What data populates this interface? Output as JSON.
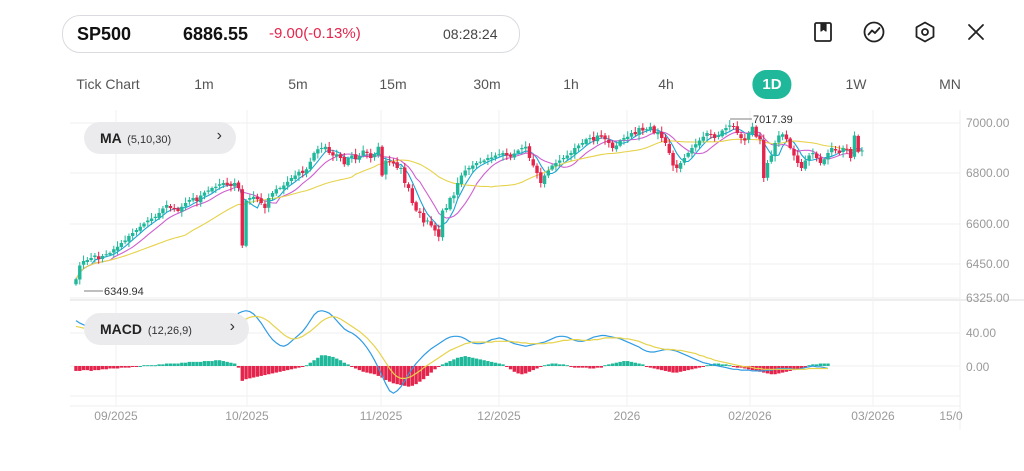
{
  "quote": {
    "symbol": "SP500",
    "price": "6886.55",
    "change": "-9.00(-0.13%)",
    "time": "08:28:24"
  },
  "toolbar": [
    {
      "name": "bookmark-icon"
    },
    {
      "name": "trend-icon"
    },
    {
      "name": "settings-hexagon-icon"
    },
    {
      "name": "close-icon"
    }
  ],
  "timeframes": [
    "Tick Chart",
    "1m",
    "5m",
    "15m",
    "30m",
    "1h",
    "4h",
    "1D",
    "1W",
    "MN"
  ],
  "active_timeframe": "1D",
  "indicators": {
    "ma": {
      "name": "MA",
      "params": "(5,10,30)",
      "chevron": "›"
    },
    "macd": {
      "name": "MACD",
      "params": "(12,26,9)",
      "chevron": "›"
    }
  },
  "colors": {
    "up": "#1fb89a",
    "down": "#e4244b",
    "ma5": "#1aa3d6",
    "ma10": "#cf5fcf",
    "ma30": "#e6d24a",
    "macd_dif": "#2f9be3",
    "macd_dea": "#e6d24a",
    "accent": "#1fb89a"
  },
  "chart_data": {
    "type": "candlestick",
    "price_axis": {
      "ticks": [
        "7000.00",
        "6800.00",
        "6600.00",
        "6450.00",
        "6325.00"
      ],
      "values": [
        7000,
        6800,
        6600,
        6450,
        6325
      ]
    },
    "macd_axis": {
      "ticks": [
        "40.00",
        "0.00"
      ],
      "values": [
        40,
        0
      ]
    },
    "date_axis": {
      "ticks": [
        "09/2025",
        "10/2025",
        "11/2025",
        "12/2025",
        "2026",
        "02/2026",
        "03/2026",
        "15/0"
      ]
    },
    "high_label": "7017.39",
    "low_label": "6349.94",
    "closes": [
      6375,
      6430,
      6448,
      6452,
      6460,
      6470,
      6455,
      6468,
      6475,
      6480,
      6495,
      6505,
      6520,
      6530,
      6548,
      6560,
      6572,
      6585,
      6598,
      6610,
      6618,
      6625,
      6640,
      6658,
      6672,
      6660,
      6655,
      6648,
      6665,
      6680,
      6692,
      6700,
      6688,
      6710,
      6722,
      6730,
      6740,
      6745,
      6755,
      6760,
      6752,
      6748,
      6760,
      6740,
      6510,
      6690,
      6700,
      6705,
      6695,
      6680,
      6660,
      6700,
      6720,
      6735,
      6740,
      6750,
      6765,
      6780,
      6790,
      6805,
      6800,
      6815,
      6845,
      6880,
      6895,
      6900,
      6905,
      6880,
      6870,
      6875,
      6860,
      6835,
      6860,
      6870,
      6855,
      6868,
      6890,
      6880,
      6860,
      6875,
      6905,
      6790,
      6850,
      6845,
      6838,
      6820,
      6820,
      6760,
      6740,
      6680,
      6650,
      6640,
      6602,
      6610,
      6590,
      6570,
      6545,
      6650,
      6660,
      6700,
      6710,
      6760,
      6790,
      6810,
      6820,
      6830,
      6840,
      6845,
      6850,
      6860,
      6862,
      6870,
      6875,
      6880,
      6870,
      6865,
      6878,
      6890,
      6900,
      6905,
      6860,
      6830,
      6800,
      6760,
      6790,
      6810,
      6830,
      6840,
      6850,
      6860,
      6870,
      6880,
      6900,
      6910,
      6920,
      6935,
      6940,
      6930,
      6950,
      6945,
      6935,
      6920,
      6900,
      6910,
      6930,
      6940,
      6945,
      6960,
      6955,
      6980,
      6970,
      6975,
      6985,
      6960,
      6965,
      6940,
      6920,
      6880,
      6830,
      6820,
      6840,
      6860,
      6880,
      6900,
      6915,
      6930,
      6945,
      6960,
      6955,
      6940,
      6950,
      6970,
      6980,
      6990,
      6985,
      6960,
      6940,
      6930,
      6960,
      6985,
      6945,
      6935,
      6780,
      6840,
      6870,
      6920,
      6950,
      6955,
      6935,
      6900,
      6870,
      6840,
      6820,
      6850,
      6870,
      6880,
      6860,
      6840,
      6855,
      6880,
      6900,
      6890,
      6880,
      6900,
      6895,
      6860,
      6950,
      6885,
      6890
    ],
    "macd_hist": [
      -6,
      -6,
      -5,
      -5,
      -6,
      -5,
      -5,
      -4,
      -4,
      -3,
      -3,
      -3,
      -2,
      -2,
      -2,
      -1,
      -1,
      0,
      1,
      1,
      1,
      1,
      2,
      2,
      3,
      3,
      3,
      3,
      4,
      4,
      5,
      5,
      5,
      5,
      6,
      6,
      6,
      7,
      7,
      6,
      5,
      4,
      3,
      -2,
      -18,
      -16,
      -15,
      -14,
      -13,
      -12,
      -11,
      -10,
      -9,
      -8,
      -7,
      -6,
      -5,
      -4,
      -3,
      -2,
      -1,
      1,
      4,
      7,
      10,
      13,
      13,
      12,
      11,
      9,
      7,
      4,
      2,
      -1,
      -3,
      -5,
      -7,
      -8,
      -9,
      -10,
      -12,
      -14,
      -17,
      -19,
      -21,
      -22,
      -23,
      -24,
      -25,
      -24,
      -22,
      -19,
      -16,
      -12,
      -8,
      -4,
      -1,
      2,
      4,
      6,
      8,
      10,
      11,
      12,
      11,
      10,
      9,
      8,
      7,
      6,
      5,
      4,
      3,
      2,
      -1,
      -4,
      -7,
      -9,
      -10,
      -9,
      -7,
      -5,
      -3,
      -1,
      1,
      2,
      3,
      3,
      2,
      2,
      1,
      -1,
      -2,
      -2,
      -2,
      -2,
      -3,
      -3,
      -2,
      -2,
      1,
      2,
      3,
      4,
      5,
      6,
      6,
      5,
      4,
      3,
      2,
      -1,
      -2,
      -3,
      -4,
      -5,
      -6,
      -7,
      -8,
      -8,
      -7,
      -6,
      -5,
      -4,
      -3,
      -2,
      -1,
      1,
      2,
      3,
      3,
      2,
      2,
      1,
      -1,
      -2,
      -2,
      -3,
      -4,
      -5,
      -6,
      -7,
      -8,
      -9,
      -10,
      -10,
      -9,
      -8,
      -7,
      -6,
      -5,
      -4,
      -3,
      -2,
      1,
      2,
      2,
      3,
      3,
      3
    ],
    "macd_dif": [
      55,
      52,
      50,
      48,
      46,
      45,
      44,
      43,
      42,
      41,
      40,
      39,
      38,
      38,
      39,
      40,
      42,
      44,
      46,
      49,
      52,
      55,
      57,
      59,
      61,
      62,
      62,
      61,
      60,
      58,
      55,
      50,
      45,
      40,
      36,
      34,
      32,
      30,
      31,
      35,
      40,
      50,
      58,
      64,
      66,
      67,
      66,
      63,
      58,
      52,
      45,
      38,
      32,
      28,
      25,
      24,
      26,
      30,
      34,
      38,
      42,
      48,
      55,
      62,
      66,
      67,
      66,
      64,
      60,
      55,
      50,
      45,
      42,
      40,
      37,
      33,
      28,
      22,
      15,
      7,
      -2,
      -12,
      -22,
      -30,
      -33,
      -30,
      -25,
      -18,
      -10,
      -3,
      3,
      8,
      13,
      17,
      21,
      24,
      27,
      30,
      33,
      35,
      36,
      36,
      35,
      33,
      30,
      28,
      27,
      27,
      28,
      30,
      32,
      33,
      34,
      33,
      31,
      29,
      27,
      26,
      25,
      24,
      25,
      26,
      27,
      28,
      29,
      31,
      33,
      35,
      36,
      36,
      35,
      33,
      31,
      30,
      30,
      31,
      33,
      35,
      36,
      37,
      37,
      36,
      35,
      34,
      33,
      31,
      29,
      27,
      25,
      23,
      20,
      18,
      17,
      17,
      18,
      19,
      20,
      20,
      19,
      18,
      16,
      14,
      12,
      10,
      8,
      6,
      4,
      3,
      2,
      1,
      0,
      -1,
      -2,
      -3,
      -4,
      -4,
      -5,
      -5,
      -5,
      -6,
      -6,
      -6,
      -6,
      -5,
      -5,
      -4,
      -3,
      -3,
      -3,
      -3,
      -4,
      -4,
      -3,
      -2,
      -1,
      0,
      -1,
      -1,
      -2,
      -3
    ],
    "macd_dea": [
      48,
      47,
      46,
      46,
      45,
      45,
      45,
      44,
      44,
      43,
      42,
      42,
      41,
      41,
      41,
      41,
      41,
      42,
      42,
      43,
      45,
      46,
      48,
      50,
      52,
      53,
      55,
      56,
      57,
      57,
      57,
      56,
      55,
      53,
      51,
      48,
      45,
      42,
      40,
      40,
      41,
      43,
      46,
      50,
      54,
      57,
      59,
      60,
      60,
      59,
      57,
      54,
      50,
      46,
      42,
      38,
      35,
      33,
      33,
      34,
      36,
      39,
      42,
      46,
      50,
      54,
      57,
      59,
      60,
      59,
      57,
      54,
      51,
      48,
      45,
      42,
      38,
      34,
      29,
      24,
      18,
      11,
      4,
      -3,
      -9,
      -13,
      -15,
      -15,
      -14,
      -12,
      -9,
      -6,
      -2,
      1,
      4,
      7,
      10,
      13,
      16,
      19,
      21,
      23,
      25,
      27,
      28,
      29,
      29,
      29,
      29,
      29,
      29,
      30,
      30,
      30,
      30,
      30,
      29,
      29,
      28,
      28,
      27,
      27,
      27,
      27,
      27,
      28,
      28,
      29,
      30,
      31,
      31,
      32,
      32,
      32,
      31,
      31,
      31,
      32,
      32,
      33,
      34,
      34,
      34,
      34,
      34,
      33,
      33,
      32,
      31,
      30,
      28,
      26,
      25,
      23,
      22,
      21,
      20,
      20,
      20,
      19,
      19,
      18,
      17,
      16,
      15,
      13,
      12,
      10,
      9,
      7,
      6,
      5,
      4,
      3,
      2,
      1,
      0,
      -1,
      -1,
      -2,
      -3,
      -3,
      -4,
      -4,
      -4,
      -4,
      -4,
      -4,
      -4,
      -4,
      -4,
      -4,
      -4,
      -4,
      -3,
      -3,
      -3,
      -3,
      -3,
      -3
    ]
  }
}
